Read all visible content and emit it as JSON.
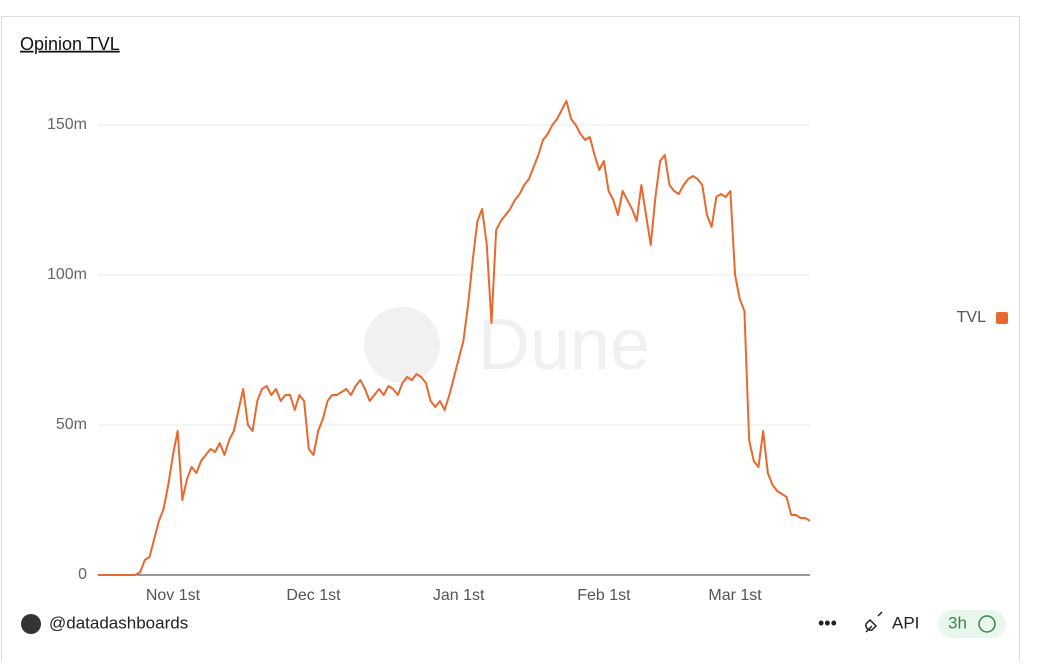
{
  "chart_data": {
    "type": "line",
    "title": "Opinion TVL",
    "watermark": "Dune",
    "categories": [
      null,
      null,
      null,
      null,
      null,
      null,
      null,
      null,
      null,
      null,
      null,
      null,
      null,
      null,
      null,
      null,
      "Nov 1st",
      null,
      null,
      null,
      null,
      null,
      null,
      null,
      null,
      null,
      null,
      null,
      null,
      null,
      null,
      null,
      null,
      null,
      null,
      null,
      null,
      null,
      null,
      null,
      null,
      null,
      null,
      null,
      null,
      null,
      "Dec 1st",
      null,
      null,
      null,
      null,
      null,
      null,
      null,
      null,
      null,
      null,
      null,
      null,
      null,
      null,
      null,
      null,
      null,
      null,
      null,
      null,
      null,
      null,
      null,
      null,
      null,
      null,
      null,
      null,
      null,
      null,
      "Jan 1st",
      null,
      null,
      null,
      null,
      null,
      null,
      null,
      null,
      null,
      null,
      null,
      null,
      null,
      null,
      null,
      null,
      null,
      null,
      null,
      null,
      null,
      null,
      null,
      null,
      null,
      null,
      null,
      null,
      null,
      null,
      "Feb 1st",
      null,
      null,
      null,
      null,
      null,
      null,
      null,
      null,
      null,
      null,
      null,
      null,
      null,
      null,
      null,
      null,
      null,
      null,
      null,
      null,
      null,
      null,
      null,
      null,
      null,
      null,
      null,
      "Mar 1st",
      null,
      null,
      null,
      null,
      null,
      null,
      null,
      null,
      null,
      null,
      null,
      null,
      null,
      null,
      null,
      null
    ],
    "series": [
      {
        "name": "TVL",
        "color": "#e8692f",
        "values": [
          0,
          0,
          0,
          0,
          0,
          0,
          0,
          0,
          0,
          1,
          5,
          6,
          12,
          18,
          22,
          30,
          40,
          48,
          25,
          32,
          36,
          34,
          38,
          40,
          42,
          41,
          44,
          40,
          45,
          48,
          55,
          62,
          50,
          48,
          58,
          62,
          63,
          60,
          62,
          58,
          60,
          60,
          55,
          60,
          58,
          42,
          40,
          48,
          52,
          58,
          60,
          60,
          61,
          62,
          60,
          63,
          65,
          62,
          58,
          60,
          62,
          60,
          63,
          62,
          60,
          64,
          66,
          65,
          67,
          66,
          64,
          58,
          56,
          58,
          55,
          60,
          66,
          72,
          78,
          90,
          105,
          118,
          122,
          110,
          84,
          115,
          118,
          120,
          122,
          125,
          127,
          130,
          132,
          136,
          140,
          145,
          147,
          150,
          152,
          155,
          158,
          152,
          150,
          147,
          145,
          146,
          140,
          135,
          138,
          128,
          125,
          120,
          128,
          125,
          122,
          118,
          130,
          120,
          110,
          126,
          138,
          140,
          130,
          128,
          127,
          130,
          132,
          133,
          132,
          130,
          120,
          116,
          126,
          127,
          126,
          128,
          100,
          92,
          88,
          45,
          38,
          36,
          48,
          34,
          30,
          28,
          27,
          26,
          20,
          20,
          19,
          19,
          18
        ]
      }
    ],
    "ylim": [
      0,
      165
    ],
    "yticks": [
      0,
      {
        "value": 50,
        "label": "50m"
      },
      {
        "value": 100,
        "label": "100m"
      },
      {
        "value": 150,
        "label": "150m"
      }
    ],
    "grid": true,
    "legend": "right"
  },
  "footer": {
    "author": "@datadashboards",
    "api": "API",
    "age": "3h"
  }
}
